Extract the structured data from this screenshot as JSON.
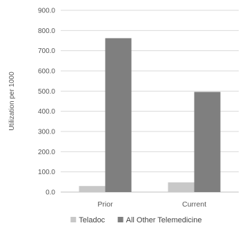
{
  "chart_data": {
    "type": "bar",
    "categories": [
      "Prior",
      "Current"
    ],
    "series": [
      {
        "name": "Teladoc",
        "values": [
          30,
          48
        ],
        "color": "#c8c8c8"
      },
      {
        "name": "All Other Telemedicine",
        "values": [
          762,
          496
        ],
        "color": "#7f7f7f"
      }
    ],
    "ylabel": "Utilization per 1000",
    "ylim": [
      0,
      900
    ],
    "yticks": [
      "0.0",
      "100.0",
      "200.0",
      "300.0",
      "400.0",
      "500.0",
      "600.0",
      "700.0",
      "800.0",
      "900.0"
    ],
    "grid": true,
    "legend_position": "bottom"
  }
}
